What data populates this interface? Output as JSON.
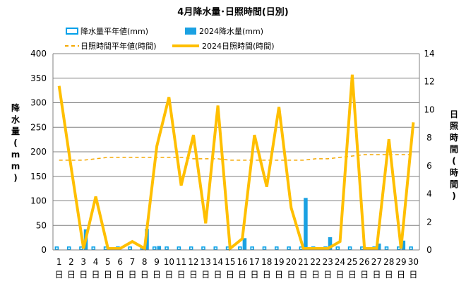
{
  "chart_data": {
    "type": "bar",
    "title": "4月降水量･日照時間(日別)",
    "legend": {
      "placement": "top",
      "items": [
        {
          "key": "precip_avg",
          "label": "降水量平年値(mm)"
        },
        {
          "key": "precip_2024",
          "label": "2024降水量(mm)"
        },
        {
          "key": "sun_avg",
          "label": "日照時間平年値(時間)"
        },
        {
          "key": "sun_2024",
          "label": "2024日照時間(時間)"
        }
      ]
    },
    "ylabel_left": "降水量(mm)",
    "ylabel_right": "日照時間(時間)",
    "ylim_left": [
      0,
      400
    ],
    "yticks_left": [
      0,
      50,
      100,
      150,
      200,
      250,
      300,
      350,
      400
    ],
    "ylim_right": [
      0,
      14
    ],
    "yticks_right": [
      0,
      2,
      4,
      6,
      8,
      10,
      12,
      14
    ],
    "grid": true,
    "categories": [
      "1",
      "2",
      "3",
      "4",
      "5",
      "6",
      "7",
      "8",
      "9",
      "10",
      "11",
      "12",
      "13",
      "14",
      "15",
      "16",
      "17",
      "18",
      "19",
      "20",
      "21",
      "22",
      "23",
      "24",
      "25",
      "26",
      "27",
      "28",
      "29",
      "30"
    ],
    "day_unit": "日",
    "series": [
      {
        "key": "precip_avg",
        "name": "降水量平年値(mm)",
        "axis": "left",
        "kind": "bar",
        "values": [
          7,
          7,
          7,
          7,
          7,
          7,
          7,
          7,
          7,
          7,
          7,
          7,
          7,
          7,
          7,
          7,
          7,
          7,
          7,
          7,
          7,
          7,
          7,
          7,
          7,
          7,
          7,
          7,
          7,
          7
        ]
      },
      {
        "key": "precip_2024",
        "name": "2024降水量(mm)",
        "axis": "left",
        "kind": "bar",
        "values": [
          0,
          0,
          42,
          0,
          0,
          0,
          0,
          43,
          8,
          0,
          0,
          0,
          0,
          0,
          0,
          24,
          0,
          0,
          0,
          0,
          106,
          0,
          26,
          0,
          0,
          0,
          13,
          0,
          19,
          0
        ]
      },
      {
        "key": "sun_avg",
        "name": "日照時間平年値(時間)",
        "axis": "right",
        "kind": "line",
        "values": [
          6.4,
          6.4,
          6.4,
          6.5,
          6.6,
          6.6,
          6.6,
          6.6,
          6.6,
          6.6,
          6.6,
          6.5,
          6.5,
          6.5,
          6.4,
          6.4,
          6.4,
          6.4,
          6.4,
          6.4,
          6.4,
          6.5,
          6.5,
          6.6,
          6.7,
          6.8,
          6.8,
          6.8,
          6.8,
          6.8
        ]
      },
      {
        "key": "sun_2024",
        "name": "2024日照時間(時間)",
        "axis": "right",
        "kind": "line",
        "values": [
          11.7,
          5.8,
          0.1,
          3.8,
          0.1,
          0.1,
          0.6,
          0.1,
          7.4,
          10.9,
          4.6,
          8.2,
          1.9,
          10.3,
          0.1,
          0.8,
          8.2,
          4.5,
          10.2,
          3.0,
          0.1,
          0.1,
          0.1,
          0.6,
          12.5,
          0.1,
          0.1,
          7.9,
          0.1,
          9.1
        ]
      }
    ],
    "colors": {
      "precip_avg_stroke": "#00a0e9",
      "precip_2024": "#1ba1e2",
      "sun_avg": "#f5a800",
      "sun_2024": "#ffbf00",
      "grid": "#808080"
    }
  }
}
